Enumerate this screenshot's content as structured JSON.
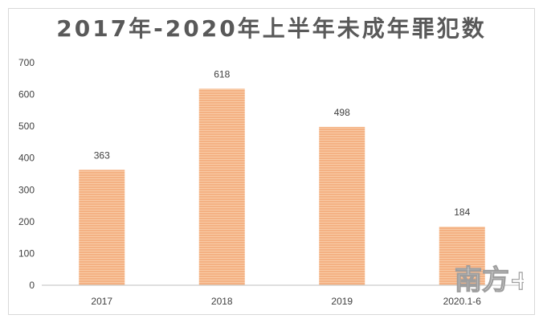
{
  "chart_data": {
    "type": "bar",
    "title": "2017年-2020年上半年未成年罪犯数",
    "categories": [
      "2017",
      "2018",
      "2019",
      "2020.1-6"
    ],
    "values": [
      363,
      618,
      498,
      184
    ],
    "ylim": [
      0,
      700
    ],
    "yticks": [
      0,
      100,
      200,
      300,
      400,
      500,
      600,
      700
    ],
    "grid": false,
    "bar_color": "#f4b183",
    "bar_stripe_color": "#f8cba6",
    "xlabel": "",
    "ylabel": ""
  },
  "watermark": {
    "text": "南方+"
  }
}
